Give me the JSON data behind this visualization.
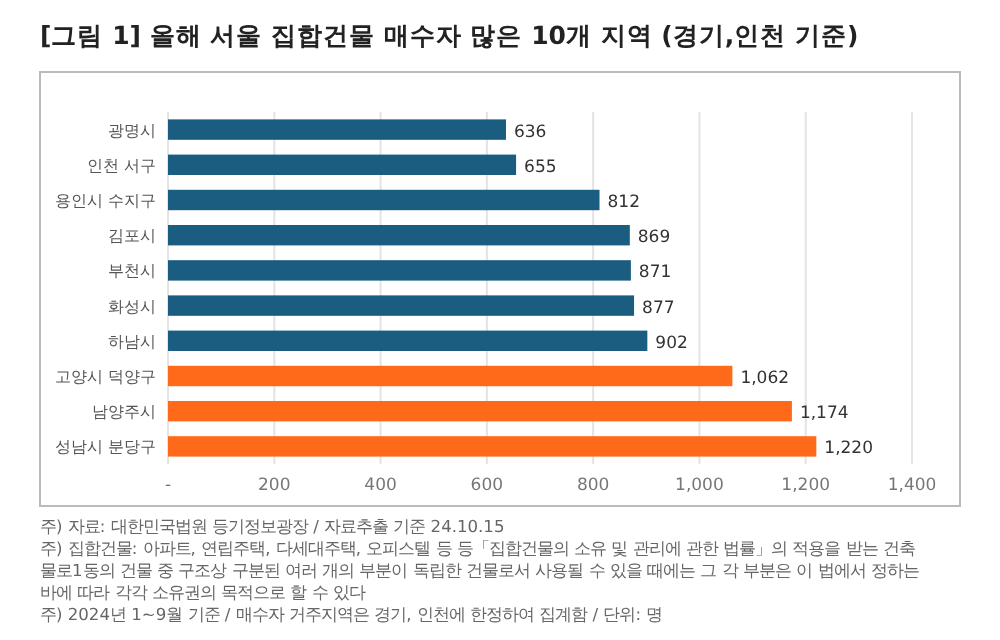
{
  "chart_data": {
    "type": "bar",
    "orientation": "horizontal",
    "title": "[그림 1] 올해 서울 집합건물 매수자 많은 10개 지역 (경기,인천 기준)",
    "categories": [
      "광명시",
      "인천 서구",
      "용인시 수지구",
      "김포시",
      "부천시",
      "화성시",
      "하남시",
      "고양시 덕양구",
      "남양주시",
      "성남시 분당구"
    ],
    "values": [
      636,
      655,
      812,
      869,
      871,
      877,
      902,
      1062,
      1174,
      1220
    ],
    "colors": [
      "#1a5d80",
      "#1a5d80",
      "#1a5d80",
      "#1a5d80",
      "#1a5d80",
      "#1a5d80",
      "#1a5d80",
      "#ff6a1a",
      "#ff6a1a",
      "#ff6a1a"
    ],
    "value_labels": [
      "636",
      "655",
      "812",
      "869",
      "871",
      "877",
      "902",
      "1,062",
      "1,174",
      "1,220"
    ],
    "xlim": [
      0,
      1400
    ],
    "xticks": [
      {
        "value": 0,
        "label": "-"
      },
      {
        "value": 200,
        "label": "200"
      },
      {
        "value": 400,
        "label": "400"
      },
      {
        "value": 600,
        "label": "600"
      },
      {
        "value": 800,
        "label": "800"
      },
      {
        "value": 1000,
        "label": "1,000"
      },
      {
        "value": 1200,
        "label": "1,200"
      },
      {
        "value": 1400,
        "label": "1,400"
      }
    ],
    "grid": "x",
    "annotations": [
      "주) 자료: 대한민국법원 등기정보광장 / 자료추출 기준 24.10.15",
      "주) 집합건물: 아파트, 연립주택, 다세대주택, 오피스텔 등 등「집합건물의 소유 및 관리에 관한 법률」의 적용을 받는 건축물로1동의 건물 중 구조상 구분된 여러 개의 부분이 독립한 건물로서 사용될 수 있을 때에는 그 각 부분은 이 법에서 정하는 바에 따라 각각 소유권의 목적으로 할 수 있다",
      "주) 2024년 1~9월 기준 / 매수자 거주지역은 경기, 인천에 한정하여 집계함 / 단위: 명"
    ]
  }
}
